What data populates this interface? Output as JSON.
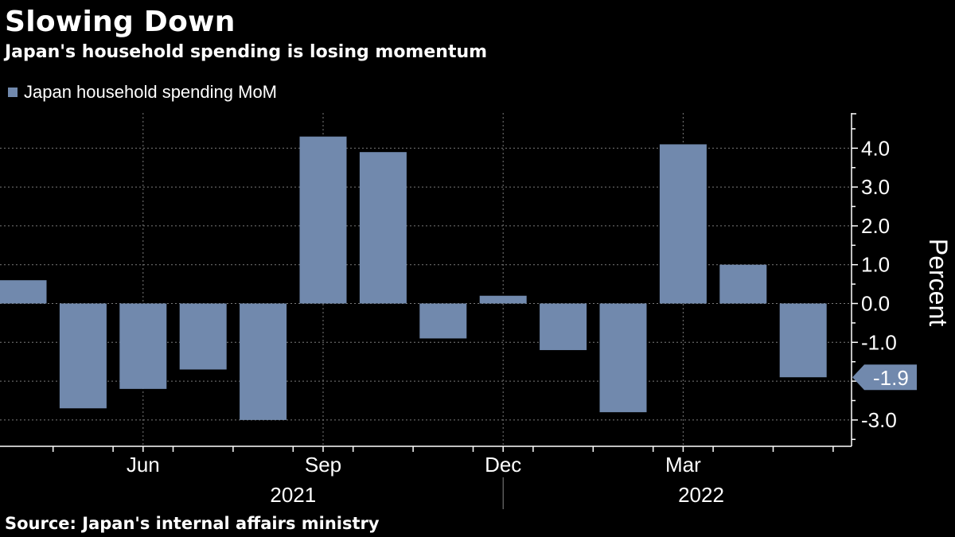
{
  "title": "Slowing Down",
  "subtitle": "Japan's household spending is losing momentum",
  "source": "Source: Japan's internal affairs ministry",
  "colors": {
    "bar": "#7189ad",
    "background": "#000000",
    "grid": "#7a7a7a",
    "text": "#ffffff"
  },
  "chart_data": {
    "type": "bar",
    "title": "Slowing Down",
    "subtitle": "Japan's household spending is losing momentum",
    "ylabel": "Percent",
    "ylim": [
      -3.7,
      4.9
    ],
    "yticks": [
      "4.0",
      "3.0",
      "2.0",
      "1.0",
      "0.0",
      "-1.0",
      "-3.0"
    ],
    "ytick_values": [
      4.0,
      3.0,
      2.0,
      1.0,
      0.0,
      -1.0,
      -3.0
    ],
    "series": [
      {
        "name": "Japan household spending MoM",
        "categories": [
          "Apr 2021",
          "May 2021",
          "Jun 2021",
          "Jul 2021",
          "Aug 2021",
          "Sep 2021",
          "Oct 2021",
          "Nov 2021",
          "Dec 2021",
          "Jan 2022",
          "Feb 2022",
          "Mar 2022",
          "Apr 2022",
          "May 2022"
        ],
        "values": [
          0.6,
          -2.7,
          -2.2,
          -1.7,
          -3.0,
          4.3,
          3.9,
          -0.9,
          0.2,
          -1.2,
          -2.8,
          4.1,
          1.0,
          -1.9
        ]
      }
    ],
    "x_tick_labels": [
      {
        "label": "Jun",
        "index": 2
      },
      {
        "label": "Sep",
        "index": 5
      },
      {
        "label": "Dec",
        "index": 8
      },
      {
        "label": "Mar",
        "index": 11
      }
    ],
    "year_labels": [
      {
        "label": "2021",
        "center_index": 4.5
      },
      {
        "label": "2022",
        "center_index": 11.3
      }
    ],
    "last_value_label": "-1.9",
    "legend_position": "top-left"
  }
}
